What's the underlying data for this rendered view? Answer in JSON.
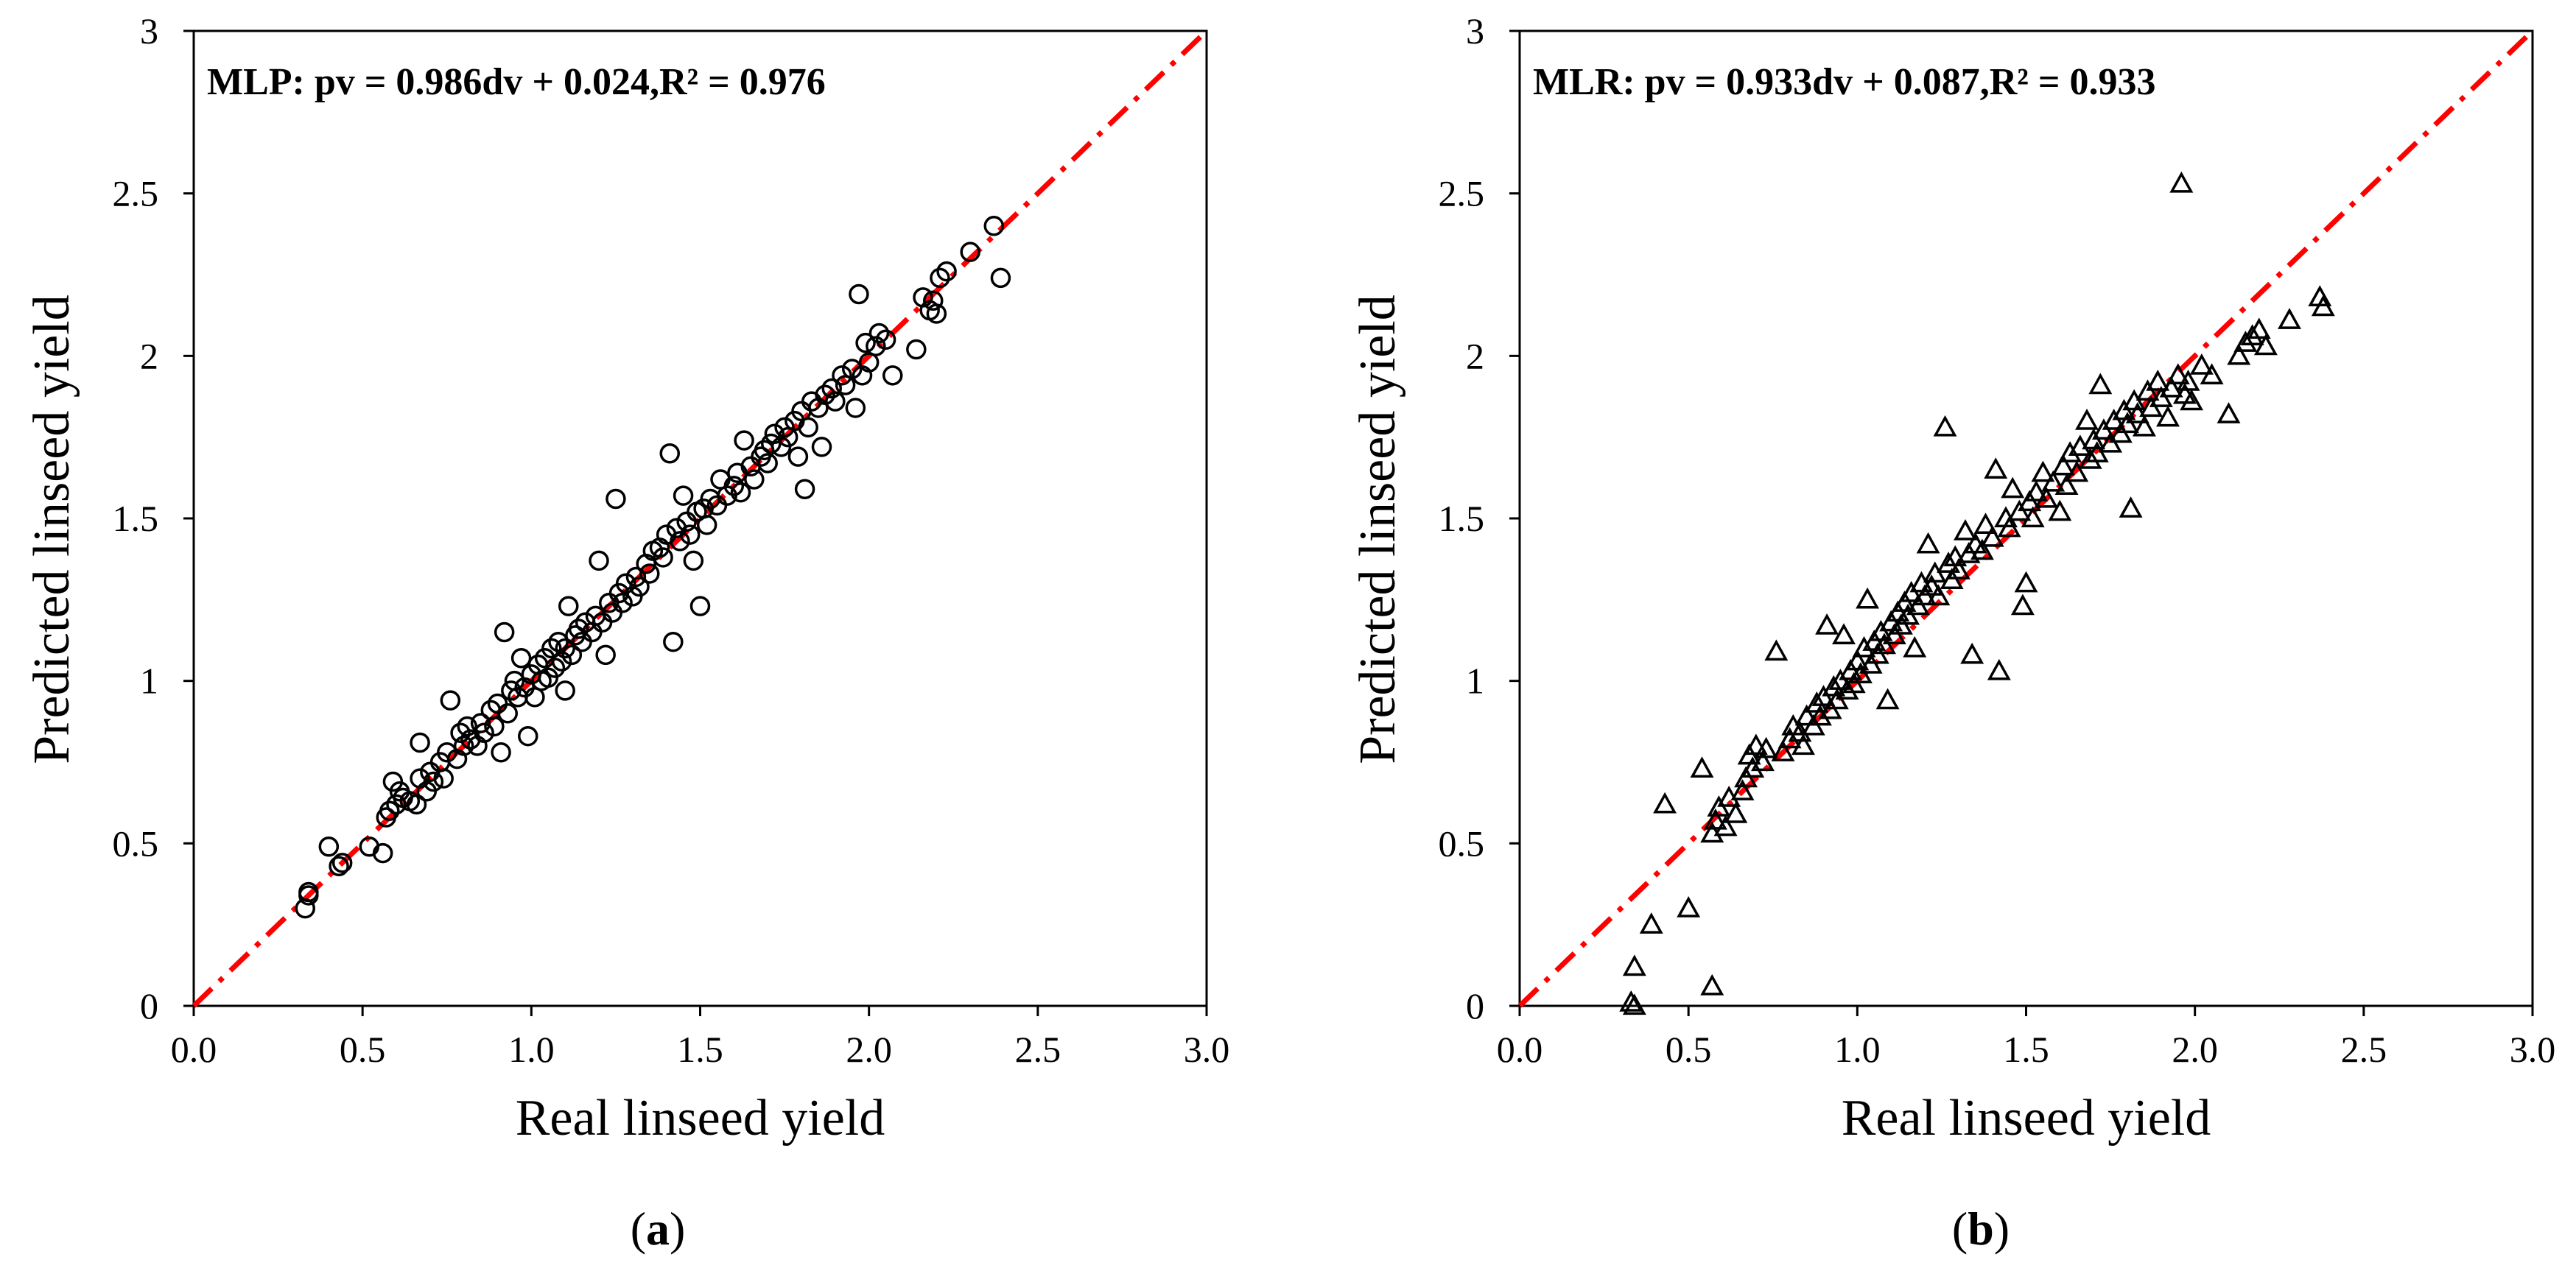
{
  "chart_data": [
    {
      "type": "scatter",
      "panel_label": "a",
      "marker": "circle",
      "equation": "MLP: pv = 0.986dv + 0.024,R² = 0.976",
      "xlabel": "Real linseed yield",
      "ylabel": "Predicted linseed yield",
      "xlim": [
        0,
        3
      ],
      "ylim": [
        0,
        3
      ],
      "x_ticks": [
        "0.0",
        "0.5",
        "1.0",
        "1.5",
        "2.0",
        "2.5",
        "3.0"
      ],
      "y_ticks": [
        "0",
        "0.5",
        "1",
        "1.5",
        "2",
        "2.5",
        "3"
      ],
      "reference_line": {
        "style": "dash-dot",
        "color": "#ff0000",
        "from": [
          0,
          0
        ],
        "to": [
          3,
          3
        ]
      },
      "points": [
        [
          0.33,
          0.3
        ],
        [
          0.34,
          0.35
        ],
        [
          0.34,
          0.34
        ],
        [
          0.4,
          0.49
        ],
        [
          0.43,
          0.43
        ],
        [
          0.44,
          0.44
        ],
        [
          0.52,
          0.49
        ],
        [
          0.56,
          0.47
        ],
        [
          0.57,
          0.58
        ],
        [
          0.58,
          0.6
        ],
        [
          0.59,
          0.69
        ],
        [
          0.6,
          0.62
        ],
        [
          0.61,
          0.66
        ],
        [
          0.62,
          0.64
        ],
        [
          0.64,
          0.63
        ],
        [
          0.66,
          0.62
        ],
        [
          0.67,
          0.81
        ],
        [
          0.67,
          0.7
        ],
        [
          0.69,
          0.66
        ],
        [
          0.7,
          0.72
        ],
        [
          0.71,
          0.69
        ],
        [
          0.73,
          0.75
        ],
        [
          0.74,
          0.7
        ],
        [
          0.75,
          0.78
        ],
        [
          0.76,
          0.94
        ],
        [
          0.78,
          0.76
        ],
        [
          0.79,
          0.84
        ],
        [
          0.8,
          0.8
        ],
        [
          0.81,
          0.86
        ],
        [
          0.82,
          0.82
        ],
        [
          0.84,
          0.8
        ],
        [
          0.85,
          0.87
        ],
        [
          0.86,
          0.84
        ],
        [
          0.88,
          0.91
        ],
        [
          0.89,
          0.86
        ],
        [
          0.9,
          0.93
        ],
        [
          0.91,
          0.78
        ],
        [
          0.92,
          1.15
        ],
        [
          0.93,
          0.9
        ],
        [
          0.94,
          0.97
        ],
        [
          0.95,
          1.0
        ],
        [
          0.96,
          0.95
        ],
        [
          0.97,
          1.07
        ],
        [
          0.98,
          0.98
        ],
        [
          0.99,
          0.83
        ],
        [
          1.0,
          1.02
        ],
        [
          1.01,
          0.95
        ],
        [
          1.02,
          1.05
        ],
        [
          1.03,
          1.0
        ],
        [
          1.04,
          1.07
        ],
        [
          1.05,
          1.01
        ],
        [
          1.06,
          1.1
        ],
        [
          1.07,
          1.04
        ],
        [
          1.08,
          1.12
        ],
        [
          1.09,
          1.06
        ],
        [
          1.1,
          0.97
        ],
        [
          1.1,
          1.1
        ],
        [
          1.11,
          1.23
        ],
        [
          1.12,
          1.08
        ],
        [
          1.13,
          1.14
        ],
        [
          1.14,
          1.16
        ],
        [
          1.15,
          1.12
        ],
        [
          1.16,
          1.18
        ],
        [
          1.18,
          1.15
        ],
        [
          1.19,
          1.2
        ],
        [
          1.2,
          1.37
        ],
        [
          1.21,
          1.18
        ],
        [
          1.22,
          1.08
        ],
        [
          1.23,
          1.24
        ],
        [
          1.24,
          1.21
        ],
        [
          1.25,
          1.56
        ],
        [
          1.26,
          1.27
        ],
        [
          1.27,
          1.24
        ],
        [
          1.28,
          1.3
        ],
        [
          1.3,
          1.26
        ],
        [
          1.31,
          1.32
        ],
        [
          1.32,
          1.29
        ],
        [
          1.34,
          1.36
        ],
        [
          1.35,
          1.33
        ],
        [
          1.36,
          1.4
        ],
        [
          1.38,
          1.41
        ],
        [
          1.39,
          1.38
        ],
        [
          1.4,
          1.45
        ],
        [
          1.41,
          1.7
        ],
        [
          1.42,
          1.12
        ],
        [
          1.43,
          1.47
        ],
        [
          1.44,
          1.43
        ],
        [
          1.45,
          1.57
        ],
        [
          1.46,
          1.49
        ],
        [
          1.47,
          1.45
        ],
        [
          1.48,
          1.37
        ],
        [
          1.49,
          1.52
        ],
        [
          1.5,
          1.23
        ],
        [
          1.51,
          1.53
        ],
        [
          1.52,
          1.48
        ],
        [
          1.53,
          1.56
        ],
        [
          1.55,
          1.54
        ],
        [
          1.56,
          1.62
        ],
        [
          1.58,
          1.57
        ],
        [
          1.6,
          1.6
        ],
        [
          1.61,
          1.64
        ],
        [
          1.62,
          1.58
        ],
        [
          1.63,
          1.74
        ],
        [
          1.65,
          1.66
        ],
        [
          1.66,
          1.62
        ],
        [
          1.68,
          1.69
        ],
        [
          1.69,
          1.71
        ],
        [
          1.7,
          1.67
        ],
        [
          1.71,
          1.73
        ],
        [
          1.72,
          1.76
        ],
        [
          1.74,
          1.72
        ],
        [
          1.75,
          1.78
        ],
        [
          1.76,
          1.75
        ],
        [
          1.78,
          1.8
        ],
        [
          1.79,
          1.69
        ],
        [
          1.8,
          1.83
        ],
        [
          1.81,
          1.59
        ],
        [
          1.82,
          1.78
        ],
        [
          1.83,
          1.86
        ],
        [
          1.85,
          1.84
        ],
        [
          1.86,
          1.72
        ],
        [
          1.87,
          1.88
        ],
        [
          1.89,
          1.9
        ],
        [
          1.9,
          1.86
        ],
        [
          1.92,
          1.94
        ],
        [
          1.93,
          1.91
        ],
        [
          1.95,
          1.96
        ],
        [
          1.96,
          1.84
        ],
        [
          1.97,
          2.19
        ],
        [
          1.98,
          1.94
        ],
        [
          1.99,
          2.04
        ],
        [
          2.0,
          1.98
        ],
        [
          2.02,
          2.03
        ],
        [
          2.03,
          2.07
        ],
        [
          2.05,
          2.05
        ],
        [
          2.07,
          1.94
        ],
        [
          2.14,
          2.02
        ],
        [
          2.16,
          2.18
        ],
        [
          2.18,
          2.14
        ],
        [
          2.19,
          2.17
        ],
        [
          2.2,
          2.13
        ],
        [
          2.21,
          2.24
        ],
        [
          2.23,
          2.26
        ],
        [
          2.3,
          2.32
        ],
        [
          2.37,
          2.4
        ],
        [
          2.39,
          2.24
        ]
      ]
    },
    {
      "type": "scatter",
      "panel_label": "b",
      "marker": "triangle",
      "equation": "MLR: pv = 0.933dv + 0.087,R² = 0.933",
      "xlabel": "Real linseed yield",
      "ylabel": "Predicted linseed yield",
      "xlim": [
        0,
        3
      ],
      "ylim": [
        0,
        3
      ],
      "x_ticks": [
        "0.0",
        "0.5",
        "1.0",
        "1.5",
        "2.0",
        "2.5",
        "3.0"
      ],
      "y_ticks": [
        "0",
        "0.5",
        "1",
        "1.5",
        "2",
        "2.5",
        "3"
      ],
      "reference_line": {
        "style": "dash-dot",
        "color": "#ff0000",
        "from": [
          0,
          0
        ],
        "to": [
          3,
          3
        ]
      },
      "points": [
        [
          0.33,
          0.01
        ],
        [
          0.34,
          0.0
        ],
        [
          0.34,
          0.12
        ],
        [
          0.39,
          0.25
        ],
        [
          0.43,
          0.62
        ],
        [
          0.5,
          0.3
        ],
        [
          0.54,
          0.73
        ],
        [
          0.57,
          0.06
        ],
        [
          0.57,
          0.53
        ],
        [
          0.58,
          0.57
        ],
        [
          0.59,
          0.61
        ],
        [
          0.61,
          0.55
        ],
        [
          0.62,
          0.64
        ],
        [
          0.64,
          0.59
        ],
        [
          0.66,
          0.66
        ],
        [
          0.67,
          0.7
        ],
        [
          0.68,
          0.77
        ],
        [
          0.69,
          0.73
        ],
        [
          0.7,
          0.8
        ],
        [
          0.72,
          0.75
        ],
        [
          0.73,
          0.79
        ],
        [
          0.76,
          1.09
        ],
        [
          0.78,
          0.78
        ],
        [
          0.8,
          0.82
        ],
        [
          0.81,
          0.86
        ],
        [
          0.83,
          0.84
        ],
        [
          0.84,
          0.8
        ],
        [
          0.85,
          0.89
        ],
        [
          0.87,
          0.86
        ],
        [
          0.88,
          0.93
        ],
        [
          0.89,
          0.89
        ],
        [
          0.9,
          0.95
        ],
        [
          0.91,
          1.17
        ],
        [
          0.92,
          0.91
        ],
        [
          0.93,
          0.98
        ],
        [
          0.94,
          0.94
        ],
        [
          0.95,
          1.0
        ],
        [
          0.96,
          1.14
        ],
        [
          0.97,
          0.97
        ],
        [
          0.98,
          1.03
        ],
        [
          0.99,
          0.99
        ],
        [
          1.0,
          1.06
        ],
        [
          1.01,
          1.02
        ],
        [
          1.02,
          1.1
        ],
        [
          1.03,
          1.25
        ],
        [
          1.04,
          1.05
        ],
        [
          1.05,
          1.12
        ],
        [
          1.06,
          1.08
        ],
        [
          1.07,
          1.15
        ],
        [
          1.08,
          1.11
        ],
        [
          1.09,
          0.94
        ],
        [
          1.1,
          1.18
        ],
        [
          1.11,
          1.14
        ],
        [
          1.12,
          1.21
        ],
        [
          1.13,
          1.17
        ],
        [
          1.14,
          1.24
        ],
        [
          1.15,
          1.2
        ],
        [
          1.16,
          1.27
        ],
        [
          1.17,
          1.1
        ],
        [
          1.18,
          1.23
        ],
        [
          1.19,
          1.3
        ],
        [
          1.2,
          1.26
        ],
        [
          1.21,
          1.42
        ],
        [
          1.22,
          1.29
        ],
        [
          1.23,
          1.33
        ],
        [
          1.24,
          1.26
        ],
        [
          1.26,
          1.78
        ],
        [
          1.27,
          1.36
        ],
        [
          1.28,
          1.31
        ],
        [
          1.29,
          1.38
        ],
        [
          1.3,
          1.34
        ],
        [
          1.32,
          1.46
        ],
        [
          1.33,
          1.39
        ],
        [
          1.34,
          1.08
        ],
        [
          1.35,
          1.42
        ],
        [
          1.37,
          1.4
        ],
        [
          1.38,
          1.48
        ],
        [
          1.4,
          1.44
        ],
        [
          1.41,
          1.65
        ],
        [
          1.42,
          1.03
        ],
        [
          1.44,
          1.5
        ],
        [
          1.45,
          1.47
        ],
        [
          1.46,
          1.59
        ],
        [
          1.48,
          1.52
        ],
        [
          1.49,
          1.23
        ],
        [
          1.5,
          1.3
        ],
        [
          1.51,
          1.55
        ],
        [
          1.52,
          1.5
        ],
        [
          1.53,
          1.58
        ],
        [
          1.55,
          1.64
        ],
        [
          1.56,
          1.56
        ],
        [
          1.58,
          1.61
        ],
        [
          1.6,
          1.52
        ],
        [
          1.61,
          1.66
        ],
        [
          1.62,
          1.6
        ],
        [
          1.63,
          1.7
        ],
        [
          1.65,
          1.64
        ],
        [
          1.66,
          1.72
        ],
        [
          1.68,
          1.8
        ],
        [
          1.69,
          1.68
        ],
        [
          1.7,
          1.74
        ],
        [
          1.71,
          1.7
        ],
        [
          1.72,
          1.91
        ],
        [
          1.73,
          1.77
        ],
        [
          1.75,
          1.73
        ],
        [
          1.76,
          1.8
        ],
        [
          1.78,
          1.76
        ],
        [
          1.79,
          1.83
        ],
        [
          1.8,
          1.79
        ],
        [
          1.81,
          1.53
        ],
        [
          1.82,
          1.86
        ],
        [
          1.83,
          1.82
        ],
        [
          1.85,
          1.78
        ],
        [
          1.86,
          1.89
        ],
        [
          1.87,
          1.84
        ],
        [
          1.89,
          1.92
        ],
        [
          1.9,
          1.87
        ],
        [
          1.92,
          1.81
        ],
        [
          1.93,
          1.9
        ],
        [
          1.95,
          1.94
        ],
        [
          1.96,
          2.53
        ],
        [
          1.97,
          1.88
        ],
        [
          1.98,
          1.92
        ],
        [
          1.99,
          1.86
        ],
        [
          2.02,
          1.97
        ],
        [
          2.05,
          1.94
        ],
        [
          2.1,
          1.82
        ],
        [
          2.13,
          2.0
        ],
        [
          2.15,
          2.04
        ],
        [
          2.17,
          2.06
        ],
        [
          2.19,
          2.08
        ],
        [
          2.21,
          2.03
        ],
        [
          2.28,
          2.11
        ],
        [
          2.37,
          2.18
        ],
        [
          2.38,
          2.15
        ]
      ]
    }
  ]
}
